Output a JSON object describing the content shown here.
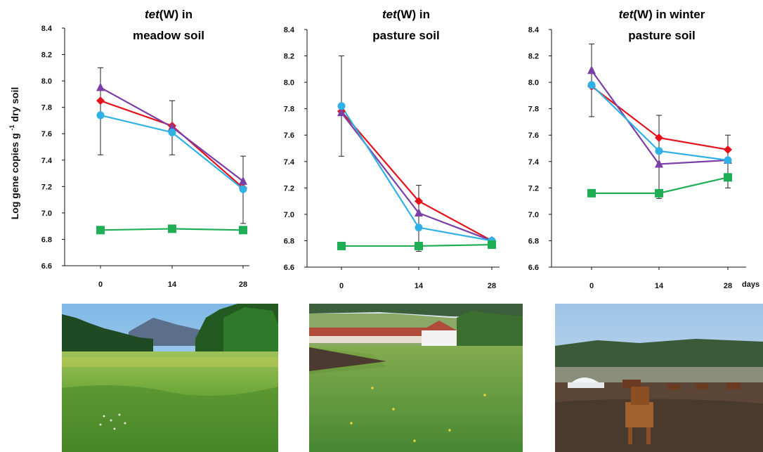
{
  "figure": {
    "ylabel": "Log gene copies g-1 dry soil",
    "days_label": "days"
  },
  "chart_data": [
    {
      "type": "line",
      "title_italic": "tet",
      "title_rest": "(W) in",
      "title_line2": "meadow soil",
      "x": [
        0,
        14,
        28
      ],
      "ylim": [
        6.6,
        8.4
      ],
      "yticks": [
        "6.6",
        "6.8",
        "7.0",
        "7.2",
        "7.4",
        "7.6",
        "7.8",
        "8.0",
        "8.2",
        "8.4"
      ],
      "xticks": [
        "0",
        "14",
        "28"
      ],
      "series": [
        {
          "color": "#e3121b",
          "marker": "diamond",
          "values": [
            7.85,
            7.66,
            7.19
          ]
        },
        {
          "color": "#7b3fa6",
          "marker": "triangle",
          "values": [
            7.95,
            7.65,
            7.24
          ]
        },
        {
          "color": "#2fb1e6",
          "marker": "circle",
          "values": [
            7.74,
            7.61,
            7.18
          ]
        },
        {
          "color": "#1fae55",
          "marker": "square",
          "values": [
            6.87,
            6.88,
            6.87
          ]
        }
      ],
      "error_bars": [
        {
          "x": 0,
          "low": 7.44,
          "high": 8.1
        },
        {
          "x": 14,
          "low": 7.44,
          "high": 7.85
        },
        {
          "x": 28,
          "low": 6.92,
          "high": 7.43
        }
      ]
    },
    {
      "type": "line",
      "title_italic": "tet",
      "title_rest": "(W) in",
      "title_line2": "pasture soil",
      "x": [
        0,
        14,
        28
      ],
      "ylim": [
        6.6,
        8.4
      ],
      "yticks": [
        "6.6",
        "6.8",
        "7.0",
        "7.2",
        "7.4",
        "7.6",
        "7.8",
        "8.0",
        "8.2",
        "8.4"
      ],
      "xticks": [
        "0",
        "14",
        "28"
      ],
      "series": [
        {
          "color": "#e3121b",
          "marker": "diamond",
          "values": [
            7.78,
            7.1,
            6.8
          ]
        },
        {
          "color": "#7b3fa6",
          "marker": "triangle",
          "values": [
            7.77,
            7.01,
            6.8
          ]
        },
        {
          "color": "#2fb1e6",
          "marker": "circle",
          "values": [
            7.82,
            6.9,
            6.8
          ]
        },
        {
          "color": "#1fae55",
          "marker": "square",
          "values": [
            6.76,
            6.76,
            6.77
          ]
        }
      ],
      "error_bars": [
        {
          "x": 0,
          "low": 7.44,
          "high": 8.2
        },
        {
          "x": 14,
          "low": 6.72,
          "high": 7.22
        },
        {
          "x": 28,
          "low": 6.78,
          "high": 6.81
        }
      ]
    },
    {
      "type": "line",
      "title_italic": "tet",
      "title_rest": "(W) in winter",
      "title_line2": "pasture soil",
      "x": [
        0,
        14,
        28
      ],
      "ylim": [
        6.6,
        8.4
      ],
      "yticks": [
        "6.6",
        "6.8",
        "7.0",
        "7.2",
        "7.4",
        "7.6",
        "7.8",
        "8.0",
        "8.2",
        "8.4"
      ],
      "xticks": [
        "0",
        "14",
        "28"
      ],
      "series": [
        {
          "color": "#e3121b",
          "marker": "diamond",
          "values": [
            7.97,
            7.58,
            7.49
          ]
        },
        {
          "color": "#7b3fa6",
          "marker": "triangle",
          "values": [
            8.09,
            7.38,
            7.41
          ]
        },
        {
          "color": "#2fb1e6",
          "marker": "circle",
          "values": [
            7.98,
            7.48,
            7.41
          ]
        },
        {
          "color": "#1fae55",
          "marker": "square",
          "values": [
            7.16,
            7.16,
            7.28
          ]
        }
      ],
      "error_bars": [
        {
          "x": 0,
          "low": 7.74,
          "high": 8.29
        },
        {
          "x": 14,
          "low": 7.12,
          "high": 7.75
        },
        {
          "x": 28,
          "low": 7.2,
          "high": 7.6
        }
      ]
    }
  ]
}
